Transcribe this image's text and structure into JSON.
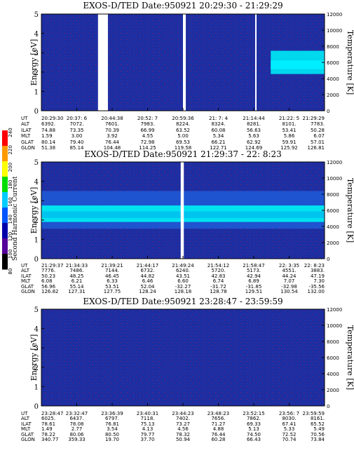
{
  "colors": {
    "bg_low": "#1a2aa0",
    "speckle": "#6a1e6a",
    "cyan": "#00e4f0",
    "cyan_dark": "#00a6e6",
    "mid_blue": "#1f5ad8"
  },
  "colorbar": {
    "label": "Second Harmonic Current",
    "ticks": [
      "240",
      "220",
      "200",
      "180",
      "160",
      "140",
      "120",
      "100",
      "80"
    ],
    "colors": [
      "#ff0000",
      "#ff9900",
      "#ffff00",
      "#00dd00",
      "#00ccff",
      "#0055ff",
      "#0000aa",
      "#550099",
      "#000000"
    ]
  },
  "chart_data": [
    {
      "type": "heatmap",
      "title": "EXOS-D/TED   Date:950921   20:29:30 - 21:29:29",
      "ylabel": "Energy [eV]",
      "y2label": "Temperature [K]",
      "ylim": [
        0,
        5
      ],
      "y2lim": [
        0,
        12000
      ],
      "yticks": [
        "0",
        "1",
        "2",
        "3",
        "4",
        "5"
      ],
      "y2ticks": [
        "0",
        "2000",
        "4000",
        "6000",
        "8000",
        "10000",
        "12000"
      ],
      "gaps": [
        [
          0.2,
          0.235
        ],
        [
          0.5,
          0.51
        ],
        [
          0.755,
          0.76
        ]
      ],
      "features": [
        {
          "kind": "band",
          "x0": 0.81,
          "x1": 1.0,
          "y0": 1.9,
          "y1": 3.1,
          "level": "high"
        }
      ],
      "row_labels": [
        "UT",
        "ALT",
        "ILAT",
        "MLT",
        "GLAT",
        "GLON"
      ],
      "columns": [
        [
          "20:29:30",
          "6392.",
          "74.88",
          "1.59",
          "80.14",
          "51.38"
        ],
        [
          "20:37: 6",
          "7072.",
          "73.35",
          "3.00",
          "79.40",
          "85.14"
        ],
        [
          "20:44:38",
          "7601.",
          "70.39",
          "3.92",
          "76.44",
          "104.48"
        ],
        [
          "20:52: 7",
          "7983.",
          "66.99",
          "4.55",
          "72.98",
          "114.25"
        ],
        [
          "20:59:36",
          "8224.",
          "63.52",
          "5.00",
          "69.53",
          "119.58"
        ],
        [
          "21: 7: 4",
          "8324.",
          "60.08",
          "5.34",
          "66.21",
          "122.71"
        ],
        [
          "21:14:44",
          "8281.",
          "56.63",
          "5.63",
          "62.92",
          "124.69"
        ],
        [
          "21:22: 5",
          "8101.",
          "53.41",
          "5.86",
          "59.91",
          "125.92"
        ],
        [
          "21:29:29",
          "7783.",
          "50.28",
          "6.07",
          "57.01",
          "126.81"
        ]
      ]
    },
    {
      "type": "heatmap",
      "title": "EXOS-D/TED   Date:950921   21:29:37 - 22: 8:23",
      "ylabel": "Energy [eV]",
      "y2label": "Temperature [K]",
      "ylim": [
        0,
        5
      ],
      "y2lim": [
        0,
        12000
      ],
      "yticks": [
        "0",
        "1",
        "2",
        "3",
        "4",
        "5"
      ],
      "y2ticks": [
        "0",
        "2000",
        "4000",
        "6000",
        "8000",
        "10000",
        "12000"
      ],
      "gaps": [
        [
          0.492,
          0.503
        ]
      ],
      "features": [
        {
          "kind": "band",
          "x0": 0.0,
          "x1": 1.0,
          "y0": 1.9,
          "y1": 2.75,
          "level": "high"
        },
        {
          "kind": "band",
          "x0": 0.0,
          "x1": 1.0,
          "y0": 1.55,
          "y1": 3.5,
          "level": "mid"
        }
      ],
      "row_labels": [
        "UT",
        "ALT",
        "ILAT",
        "MLT",
        "GLAT",
        "GLON"
      ],
      "columns": [
        [
          "21:29:37",
          "7776.",
          "50.23",
          "6.08",
          "56.96",
          "126.82"
        ],
        [
          "21:34:33",
          "7486.",
          "48.25",
          "6.21",
          "55.14",
          "127.31"
        ],
        [
          "21:39:21",
          "7144.",
          "46.45",
          "6.33",
          "53.51",
          "127.75"
        ],
        [
          "21:44:17",
          "6732.",
          "44.82",
          "6.46",
          "52.04",
          "128.24"
        ],
        [
          "21:49:24",
          "6240.",
          "43.51",
          "6.60",
          "-32.27",
          "128.18"
        ],
        [
          "21:54:12",
          "5720.",
          "42.83",
          "6.74",
          "-31.72",
          "128.78"
        ],
        [
          "21:58:47",
          "5173.",
          "42.94",
          "6.89",
          "-31.85",
          "129.51"
        ],
        [
          "22: 3:35",
          "4551.",
          "44.24",
          "7.07",
          "-32.98",
          "130.54"
        ],
        [
          "22: 8:23",
          "3883.",
          "47.19",
          "7.30",
          "-35.56",
          "132.00"
        ]
      ]
    },
    {
      "type": "heatmap",
      "title": "EXOS-D/TED   Date:950921   23:28:47 - 23:59:59",
      "ylabel": "Energy [eV]",
      "y2label": "Temperature [K]",
      "ylim": [
        0,
        5
      ],
      "y2lim": [
        0,
        12000
      ],
      "yticks": [
        "0",
        "1",
        "2",
        "3",
        "4",
        "5"
      ],
      "y2ticks": [
        "0",
        "2000",
        "4000",
        "6000",
        "8000",
        "10000",
        "12000"
      ],
      "gaps": [],
      "features": [],
      "row_labels": [
        "UT",
        "ALT",
        "ILAT",
        "MLT",
        "GLAT",
        "GLON"
      ],
      "columns": [
        [
          "23:28:47",
          "6025.",
          "78.61",
          "1.49",
          "78.22",
          "340.77"
        ],
        [
          "23:32:47",
          "6437.",
          "78.08",
          "2.77",
          "80.06",
          "359.33"
        ],
        [
          "23:36:39",
          "6797.",
          "76.81",
          "3.54",
          "80.50",
          "19.70"
        ],
        [
          "23:40:31",
          "7118.",
          "75.13",
          "4.13",
          "79.77",
          "37.70"
        ],
        [
          "23:44:23",
          "7402.",
          "73.27",
          "4.56",
          "78.32",
          "50.94"
        ],
        [
          "23:48:23",
          "7656.",
          "71.27",
          "4.88",
          "76.44",
          "60.28"
        ],
        [
          "23:52:15",
          "7862.",
          "69.33",
          "5.13",
          "74.50",
          "66.43"
        ],
        [
          "23:56: 7",
          "8030.",
          "67.41",
          "5.33",
          "72.52",
          "70.74"
        ],
        [
          "23:59:59",
          "8161.",
          "65.52",
          "5.49",
          "70.56",
          "73.84"
        ]
      ]
    }
  ]
}
